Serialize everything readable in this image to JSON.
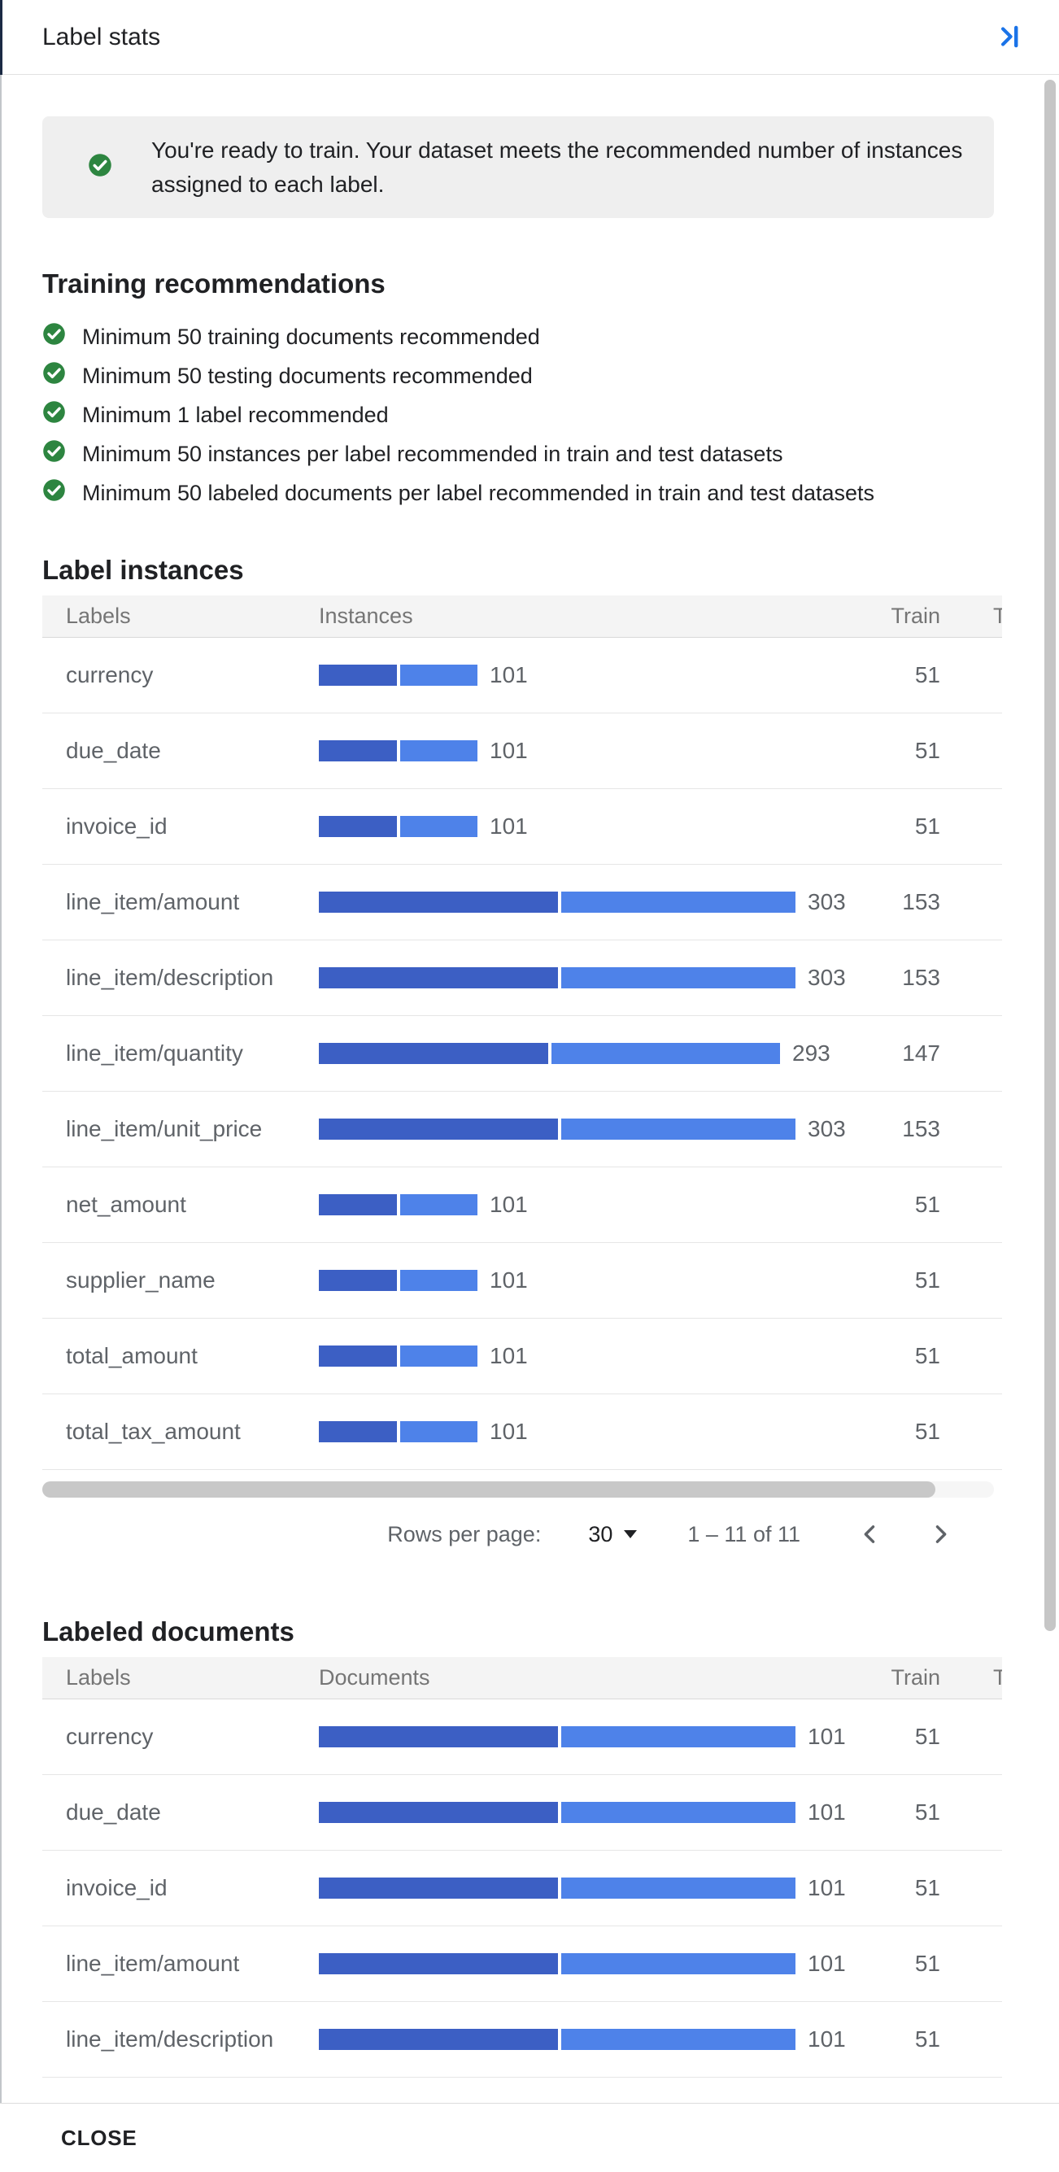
{
  "header": {
    "title": "Label stats"
  },
  "banner": {
    "text": "You're ready to train. Your dataset meets the recommended number of instances assigned to each label."
  },
  "recommendations": {
    "heading": "Training recommendations",
    "items": [
      "Minimum 50 training documents recommended",
      "Minimum 50 testing documents recommended",
      "Minimum 1 label recommended",
      "Minimum 50 instances per label recommended in train and test datasets",
      "Minimum 50 labeled documents per label recommended in train and test datasets"
    ]
  },
  "label_instances": {
    "heading": "Label instances",
    "columns": {
      "labels": "Labels",
      "metric": "Instances",
      "train": "Train",
      "test": "Test"
    },
    "max_value": 303,
    "rows": [
      {
        "label": "currency",
        "value": 101,
        "train": 51
      },
      {
        "label": "due_date",
        "value": 101,
        "train": 51
      },
      {
        "label": "invoice_id",
        "value": 101,
        "train": 51
      },
      {
        "label": "line_item/amount",
        "value": 303,
        "train": 153
      },
      {
        "label": "line_item/description",
        "value": 303,
        "train": 153
      },
      {
        "label": "line_item/quantity",
        "value": 293,
        "train": 147
      },
      {
        "label": "line_item/unit_price",
        "value": 303,
        "train": 153
      },
      {
        "label": "net_amount",
        "value": 101,
        "train": 51
      },
      {
        "label": "supplier_name",
        "value": 101,
        "train": 51
      },
      {
        "label": "total_amount",
        "value": 101,
        "train": 51
      },
      {
        "label": "total_tax_amount",
        "value": 101,
        "train": 51
      }
    ]
  },
  "pagination": {
    "rows_per_page_label": "Rows per page:",
    "rows_per_page": "30",
    "range": "1 – 11 of 11"
  },
  "labeled_documents": {
    "heading": "Labeled documents",
    "columns": {
      "labels": "Labels",
      "metric": "Documents",
      "train": "Train",
      "test": "Test"
    },
    "max_value": 101,
    "rows": [
      {
        "label": "currency",
        "value": 101,
        "train": 51
      },
      {
        "label": "due_date",
        "value": 101,
        "train": 51
      },
      {
        "label": "invoice_id",
        "value": 101,
        "train": 51
      },
      {
        "label": "line_item/amount",
        "value": 101,
        "train": 51
      },
      {
        "label": "line_item/description",
        "value": 101,
        "train": 51
      }
    ]
  },
  "footer": {
    "close_label": "CLOSE"
  },
  "colors": {
    "bar_train": "#3c5fc4",
    "bar_test": "#4e82e9",
    "success_green": "#2d8540",
    "accent_blue": "#1a73e8"
  },
  "chart_data": [
    {
      "type": "bar",
      "title": "Label instances",
      "categories": [
        "currency",
        "due_date",
        "invoice_id",
        "line_item/amount",
        "line_item/description",
        "line_item/quantity",
        "line_item/unit_price",
        "net_amount",
        "supplier_name",
        "total_amount",
        "total_tax_amount"
      ],
      "series": [
        {
          "name": "Train",
          "values": [
            51,
            51,
            51,
            153,
            153,
            147,
            153,
            51,
            51,
            51,
            51
          ]
        },
        {
          "name": "Total instances",
          "values": [
            101,
            101,
            101,
            303,
            303,
            293,
            303,
            101,
            101,
            101,
            101
          ]
        }
      ],
      "xlabel": "Instances",
      "ylabel": "Labels",
      "xlim": [
        0,
        303
      ],
      "legend_position": "none",
      "grid": false
    },
    {
      "type": "bar",
      "title": "Labeled documents",
      "categories": [
        "currency",
        "due_date",
        "invoice_id",
        "line_item/amount",
        "line_item/description"
      ],
      "series": [
        {
          "name": "Train",
          "values": [
            51,
            51,
            51,
            51,
            51
          ]
        },
        {
          "name": "Total documents",
          "values": [
            101,
            101,
            101,
            101,
            101
          ]
        }
      ],
      "xlabel": "Documents",
      "ylabel": "Labels",
      "xlim": [
        0,
        101
      ],
      "legend_position": "none",
      "grid": false
    }
  ]
}
